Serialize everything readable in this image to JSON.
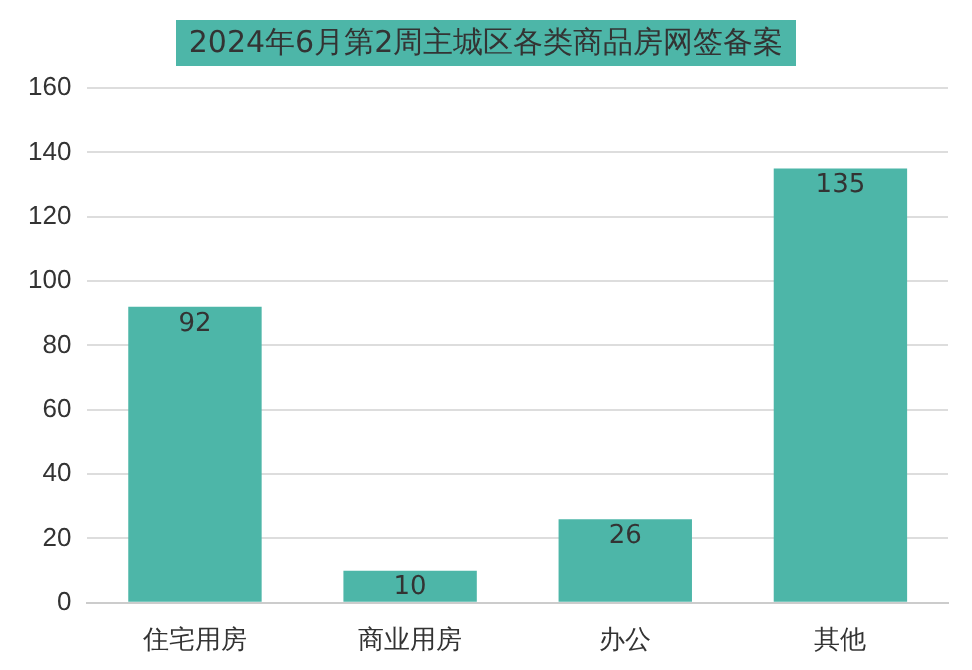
{
  "chart_data": {
    "type": "bar",
    "title": "2024年6月第2周主城区各类商品房网签备案",
    "categories": [
      "住宅用房",
      "商业用房",
      "办公",
      "其他"
    ],
    "values": [
      92,
      10,
      26,
      135
    ],
    "color": "#4db6a8",
    "ylim": [
      0,
      160
    ],
    "yticks": [
      0,
      20,
      40,
      60,
      80,
      100,
      120,
      140,
      160
    ],
    "grid": "y",
    "data_labels": true
  }
}
